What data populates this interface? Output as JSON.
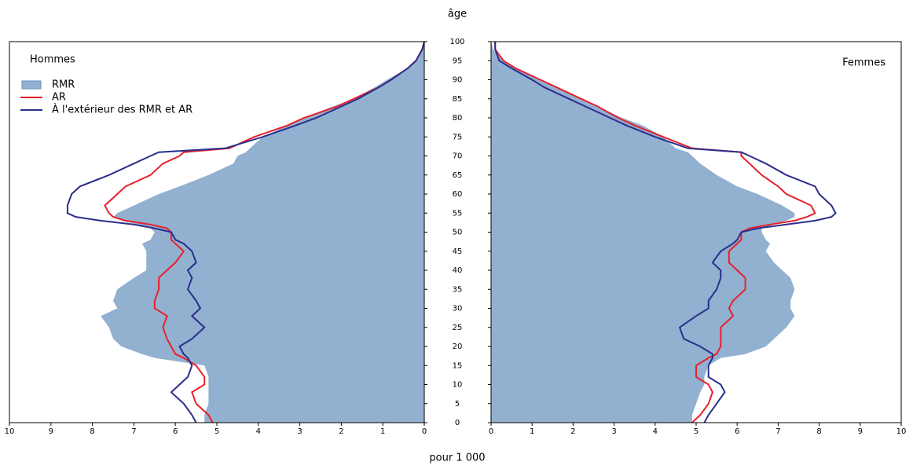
{
  "chart_data": {
    "type": "pyramid",
    "x_label": "âge",
    "y_label": "pour 1 000",
    "x": [
      0,
      2,
      5,
      8,
      10,
      12,
      15,
      17,
      18,
      20,
      22,
      25,
      28,
      30,
      32,
      35,
      38,
      40,
      42,
      45,
      47,
      48,
      50,
      51,
      52,
      53,
      54,
      55,
      57,
      60,
      62,
      65,
      68,
      70,
      71,
      72,
      75,
      78,
      80,
      83,
      85,
      88,
      90,
      93,
      95,
      98,
      100
    ],
    "xlim": [
      0,
      100
    ],
    "xticks": [
      0,
      5,
      10,
      15,
      20,
      25,
      30,
      35,
      40,
      45,
      50,
      55,
      60,
      65,
      70,
      75,
      80,
      85,
      90,
      95,
      100
    ],
    "ylim": [
      0,
      10
    ],
    "yticks": [
      0,
      1,
      2,
      3,
      4,
      5,
      6,
      7,
      8,
      9,
      10
    ],
    "panels": [
      {
        "title": "Hommes",
        "side": "left",
        "legend": "top-left",
        "series": [
          {
            "name": "RMR",
            "kind": "area",
            "color": "#92b0d0",
            "values": [
              5.3,
              5.3,
              5.2,
              5.2,
              5.2,
              5.2,
              5.3,
              6.5,
              6.8,
              7.3,
              7.5,
              7.6,
              7.8,
              7.4,
              7.5,
              7.4,
              7.0,
              6.7,
              6.7,
              6.7,
              6.8,
              6.6,
              6.5,
              6.6,
              6.9,
              7.3,
              7.5,
              7.4,
              7.0,
              6.4,
              5.9,
              5.2,
              4.6,
              4.5,
              4.3,
              4.2,
              3.9,
              3.3,
              2.9,
              2.2,
              1.7,
              1.2,
              0.9,
              0.4,
              0.2,
              0.05,
              0
            ]
          },
          {
            "name": "AR",
            "kind": "line",
            "color": "#e8202a",
            "values": [
              5.1,
              5.2,
              5.5,
              5.6,
              5.3,
              5.3,
              5.5,
              5.8,
              6.0,
              6.1,
              6.2,
              6.3,
              6.2,
              6.5,
              6.5,
              6.4,
              6.4,
              6.2,
              6.0,
              5.8,
              6.0,
              6.1,
              6.1,
              6.2,
              6.6,
              7.2,
              7.5,
              7.6,
              7.7,
              7.4,
              7.2,
              6.6,
              6.3,
              5.9,
              5.8,
              4.7,
              4.1,
              3.3,
              2.9,
              2.1,
              1.7,
              1.1,
              0.8,
              0.4,
              0.2,
              0.05,
              0
            ]
          },
          {
            "name": "À l'extérieur des RMR et AR",
            "kind": "line",
            "color": "#2a2e8c",
            "values": [
              5.5,
              5.6,
              5.8,
              6.1,
              5.9,
              5.7,
              5.6,
              5.7,
              5.8,
              5.9,
              5.6,
              5.3,
              5.6,
              5.4,
              5.5,
              5.7,
              5.6,
              5.7,
              5.5,
              5.6,
              5.8,
              6.0,
              6.1,
              6.5,
              7.0,
              7.8,
              8.4,
              8.6,
              8.6,
              8.5,
              8.3,
              7.6,
              7.0,
              6.6,
              6.4,
              4.8,
              3.9,
              3.1,
              2.6,
              2.0,
              1.6,
              1.1,
              0.8,
              0.4,
              0.2,
              0.05,
              0
            ]
          }
        ]
      },
      {
        "title": "Femmes",
        "side": "right",
        "series": [
          {
            "name": "RMR",
            "kind": "area",
            "color": "#92b0d0",
            "values": [
              4.9,
              4.9,
              5.0,
              5.1,
              5.2,
              5.2,
              5.3,
              5.6,
              6.2,
              6.7,
              6.9,
              7.2,
              7.4,
              7.3,
              7.3,
              7.4,
              7.3,
              7.1,
              6.9,
              6.7,
              6.8,
              6.7,
              6.6,
              6.6,
              6.9,
              7.2,
              7.4,
              7.4,
              7.1,
              6.5,
              6.0,
              5.5,
              5.1,
              4.9,
              4.8,
              4.5,
              4.2,
              3.7,
              3.2,
              2.6,
              2.2,
              1.6,
              1.2,
              0.6,
              0.3,
              0.05,
              0
            ]
          },
          {
            "name": "AR",
            "kind": "line",
            "color": "#e8202a",
            "values": [
              4.9,
              5.1,
              5.3,
              5.4,
              5.3,
              5.0,
              5.0,
              5.3,
              5.5,
              5.6,
              5.6,
              5.6,
              5.9,
              5.8,
              5.9,
              6.2,
              6.2,
              6.0,
              5.8,
              5.8,
              6.0,
              6.1,
              6.1,
              6.3,
              6.8,
              7.4,
              7.7,
              7.9,
              7.8,
              7.2,
              7.0,
              6.6,
              6.3,
              6.1,
              6.1,
              4.9,
              4.2,
              3.5,
              3.1,
              2.6,
              2.2,
              1.6,
              1.2,
              0.6,
              0.3,
              0.1,
              0.1
            ]
          },
          {
            "name": "À l'extérieur des RMR et AR",
            "kind": "line",
            "color": "#2a2e8c",
            "values": [
              5.2,
              5.3,
              5.5,
              5.7,
              5.6,
              5.3,
              5.3,
              5.4,
              5.4,
              5.1,
              4.7,
              4.6,
              5.0,
              5.3,
              5.3,
              5.5,
              5.6,
              5.6,
              5.4,
              5.6,
              5.9,
              6.0,
              6.1,
              6.5,
              7.2,
              7.9,
              8.3,
              8.4,
              8.3,
              8.0,
              7.9,
              7.2,
              6.7,
              6.3,
              6.1,
              4.8,
              4.0,
              3.3,
              2.9,
              2.3,
              1.9,
              1.3,
              1.0,
              0.5,
              0.2,
              0.1,
              0.1
            ]
          }
        ]
      }
    ]
  }
}
